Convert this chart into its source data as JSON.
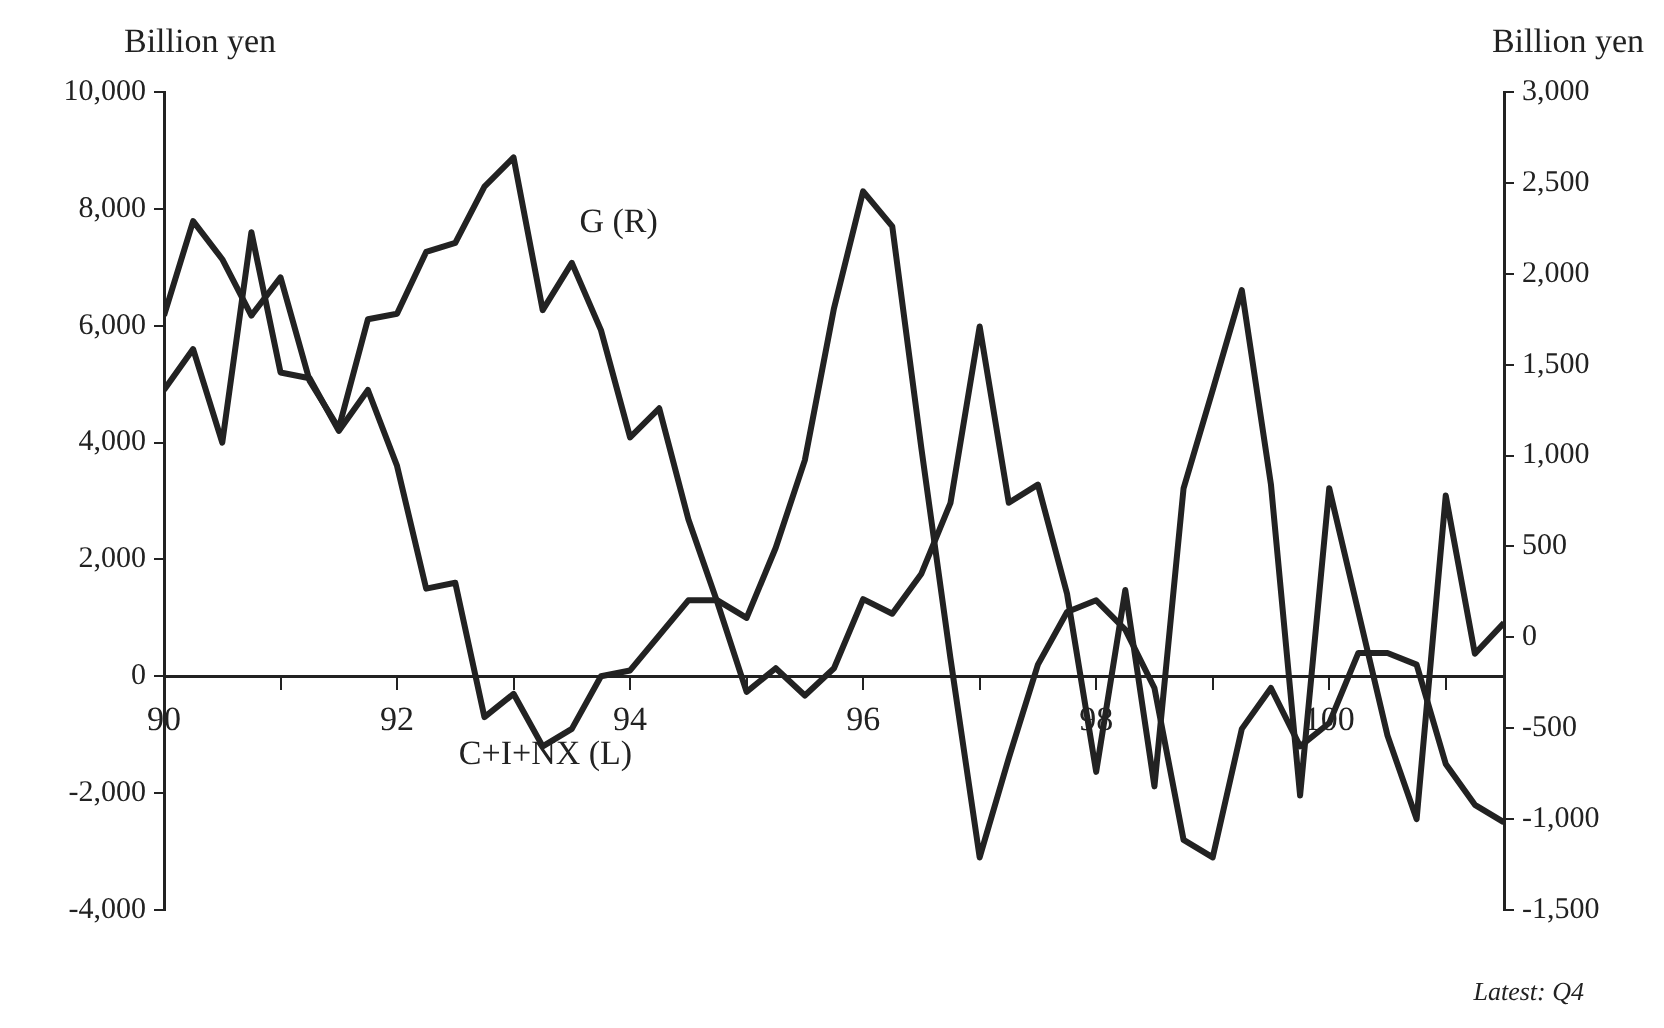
{
  "chart_data": {
    "type": "line",
    "ylabel": "Billion yen",
    "y2label": "Billion yen",
    "x": [
      90,
      90.25,
      90.5,
      90.75,
      91,
      91.25,
      91.5,
      91.75,
      92,
      92.25,
      92.5,
      92.75,
      93,
      93.25,
      93.5,
      93.75,
      94,
      94.25,
      94.5,
      94.75,
      95,
      95.25,
      95.5,
      95.75,
      96,
      96.25,
      96.5,
      96.75,
      97,
      97.25,
      97.5,
      97.75,
      98,
      98.25,
      98.5,
      98.75,
      99,
      99.25,
      99.5,
      99.75,
      100,
      100.25,
      100.5,
      100.75,
      101,
      101.25,
      101.5
    ],
    "series": [
      {
        "name": "G (R)",
        "color": "#222222",
        "axis": "y2",
        "values": [
          1770,
          2290,
          2080,
          1770,
          1980,
          1410,
          1150,
          1750,
          1780,
          2120,
          2170,
          2480,
          2640,
          1800,
          2060,
          1690,
          1100,
          1260,
          650,
          190,
          -300,
          -170,
          -320,
          -170,
          210,
          130,
          350,
          740,
          1710,
          740,
          840,
          240,
          -740,
          260,
          -820,
          820,
          1360,
          1910,
          840,
          -870,
          820,
          140,
          -540,
          -1000,
          780,
          -90,
          80
        ]
      },
      {
        "name": "C+I+NX (L)",
        "color": "#222222",
        "axis": "y",
        "values": [
          4900,
          5600,
          4000,
          7600,
          5200,
          5100,
          4200,
          4900,
          3600,
          1500,
          1600,
          -700,
          -300,
          -1200,
          -900,
          0,
          100,
          700,
          1300,
          1300,
          1000,
          2200,
          3700,
          6300,
          8300,
          7700,
          3900,
          300,
          -3100,
          -1400,
          200,
          1100,
          1300,
          800,
          -200,
          -2800,
          -3100,
          -900,
          -200,
          -1200,
          -800,
          400,
          400,
          200,
          -1500,
          -2200,
          -2500
        ]
      }
    ],
    "xlim": [
      90,
      101.5
    ],
    "xticks": [
      90,
      {
        "value": 91,
        "label": null
      },
      92,
      {
        "value": 93,
        "label": null
      },
      94,
      {
        "value": 95,
        "label": null
      },
      96,
      {
        "value": 97,
        "label": null
      },
      98,
      {
        "value": 99,
        "label": null
      },
      100,
      {
        "value": 101,
        "label": null
      }
    ],
    "ylim": [
      -4000,
      10000
    ],
    "yticks": [
      {
        "value": -4000,
        "label": "-4,000"
      },
      {
        "value": -2000,
        "label": "-2,000"
      },
      0,
      {
        "value": 2000,
        "label": "2,000"
      },
      {
        "value": 4000,
        "label": "4,000"
      },
      {
        "value": 6000,
        "label": "6,000"
      },
      {
        "value": 8000,
        "label": "8,000"
      },
      {
        "value": 10000,
        "label": "10,000"
      }
    ],
    "y2lim": [
      -1500,
      3000
    ],
    "y2ticks": [
      {
        "value": -1500,
        "label": "-1,500"
      },
      {
        "value": -1000,
        "label": "-1,000"
      },
      -500,
      0,
      500,
      {
        "value": 1000,
        "label": "1,000"
      },
      {
        "value": 1500,
        "label": "1,500"
      },
      {
        "value": 2000,
        "label": "2,000"
      },
      {
        "value": 2500,
        "label": "2,500"
      },
      {
        "value": 3000,
        "label": "3,000"
      }
    ],
    "annotations": [
      "Latest: Q4"
    ],
    "legend": false,
    "marker": "none",
    "line_style": "solid"
  }
}
